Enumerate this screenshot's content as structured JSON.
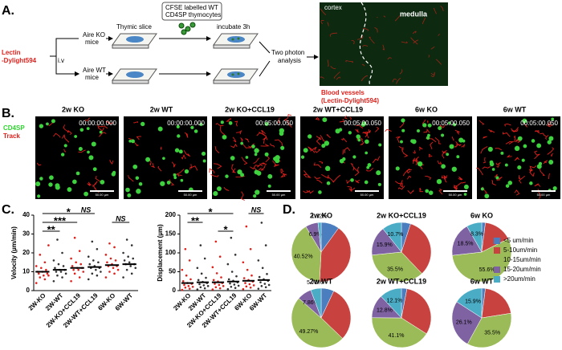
{
  "panel_a": {
    "label": "A.",
    "lectin": [
      "Lectin",
      "-Dylight594"
    ],
    "iv": "i.v",
    "aire_ko": [
      "Aire KO",
      "mice"
    ],
    "aire_wt": [
      "Aire WT",
      "mice"
    ],
    "thymic_slice": "Thymic slice",
    "cfse": [
      "CFSE labelled WT",
      "CD4SP thymocytes"
    ],
    "incubate": "incubate 3h",
    "two_photon": [
      "Two photon",
      "analysis"
    ],
    "cortex": "cortex",
    "medulla": "medulla",
    "blood_vessels": [
      "Blood vessels",
      "(Lectin-Dylight594)"
    ]
  },
  "panel_b": {
    "label": "B.",
    "legend": [
      "CD4SP",
      "Track"
    ],
    "images": [
      {
        "title": "2w KO",
        "time": "00:00:00.000",
        "scale": "50.00 µm"
      },
      {
        "title": "2w  WT",
        "time": "00:00:00.000",
        "scale": "50.00 µm"
      },
      {
        "title": "2w KO+CCL19",
        "time": "00:05:00.050",
        "scale": "50.00 µm"
      },
      {
        "title": "2w WT+CCL19",
        "time": "00:05:00.050",
        "scale": "50.00 µm"
      },
      {
        "title": "6w  KO",
        "time": "00:05:00.050",
        "scale": "50.00 µm"
      },
      {
        "title": "6w  WT",
        "time": "00:05:00.050",
        "scale": "50.00 µm"
      }
    ]
  },
  "panel_c_label": "C.",
  "panel_d_label": "D.",
  "pie_legend": {
    "labels": [
      "<5 um/min",
      "5-10um/min",
      "10-15um/min",
      "15-20um/min",
      ">20um/min"
    ],
    "colors": [
      "#4a7ebf",
      "#c8433f",
      "#9bbb59",
      "#7e62a1",
      "#4bacc6"
    ]
  },
  "chart_data": [
    {
      "type": "strip",
      "ylabel": "Velocity (µm/min)",
      "categories": [
        "2W-KO",
        "2W-WT",
        "2W-KO+CCL19",
        "2W-WT+CCL19",
        "6W-KO",
        "6W-WT"
      ],
      "colors": [
        "#e0201b",
        "#333333",
        "#e0201b",
        "#333333",
        "#e0201b",
        "#333333"
      ],
      "points": [
        [
          4,
          6,
          7,
          8,
          8,
          9,
          9,
          10,
          10,
          11,
          12,
          13,
          15,
          19,
          24
        ],
        [
          5,
          7,
          8,
          9,
          10,
          10,
          11,
          11,
          12,
          13,
          14,
          16,
          20,
          27
        ],
        [
          5,
          7,
          9,
          10,
          11,
          11,
          12,
          12,
          13,
          14,
          15,
          17,
          21,
          28
        ],
        [
          6,
          8,
          9,
          10,
          11,
          12,
          12,
          13,
          14,
          15,
          16,
          18,
          22,
          26
        ],
        [
          7,
          9,
          10,
          11,
          12,
          13,
          13,
          14,
          15,
          16,
          17,
          19,
          23,
          25
        ],
        [
          7,
          9,
          11,
          12,
          13,
          14,
          14,
          15,
          16,
          17,
          18,
          20,
          24,
          27
        ]
      ],
      "means": [
        10,
        11,
        12,
        12.5,
        13.5,
        14
      ],
      "ylim": [
        0,
        40
      ],
      "yticks": [
        0,
        10,
        20,
        30,
        40
      ],
      "annotations": [
        {
          "text": "*",
          "from": 0,
          "to": 3
        },
        {
          "text": "***",
          "from": 0,
          "to": 2
        },
        {
          "text": "**",
          "from": 0,
          "to": 1
        },
        {
          "text": "NS",
          "from": 2,
          "to": 3
        },
        {
          "text": "NS",
          "from": 4,
          "to": 5
        }
      ]
    },
    {
      "type": "strip",
      "ylabel": "Displacement (µm)",
      "categories": [
        "2W-KO",
        "2W-WT",
        "2W-KO+CCL19",
        "2W-WT+CCL19",
        "6W-KO",
        "6W-WT"
      ],
      "colors": [
        "#e0201b",
        "#333333",
        "#e0201b",
        "#333333",
        "#e0201b",
        "#333333"
      ],
      "points": [
        [
          2,
          5,
          8,
          10,
          12,
          15,
          18,
          20,
          25,
          30,
          40,
          55,
          80,
          110
        ],
        [
          3,
          6,
          9,
          12,
          14,
          17,
          20,
          23,
          28,
          34,
          45,
          60,
          85,
          120
        ],
        [
          3,
          6,
          9,
          12,
          15,
          18,
          20,
          24,
          28,
          35,
          46,
          62,
          90,
          130
        ],
        [
          4,
          7,
          10,
          13,
          16,
          19,
          22,
          26,
          30,
          38,
          50,
          70,
          95,
          140
        ],
        [
          4,
          8,
          11,
          14,
          17,
          20,
          24,
          28,
          33,
          40,
          55,
          75,
          110,
          170
        ],
        [
          5,
          9,
          12,
          15,
          18,
          22,
          26,
          30,
          36,
          44,
          60,
          80,
          120,
          180
        ]
      ],
      "means": [
        20,
        22,
        22,
        24,
        26,
        28
      ],
      "ylim": [
        0,
        200
      ],
      "yticks": [
        0,
        50,
        100,
        150,
        200
      ],
      "annotations": [
        {
          "text": "*",
          "from": 0,
          "to": 3
        },
        {
          "text": "**",
          "from": 0,
          "to": 1
        },
        {
          "text": "*",
          "from": 2,
          "to": 3
        },
        {
          "text": "NS",
          "from": 4,
          "to": 5
        }
      ]
    },
    {
      "type": "pie",
      "title": "2w KO",
      "values": [
        10,
        40.86,
        40.52,
        6.9,
        1.72
      ],
      "value_labels": [
        null,
        null,
        "40.52%",
        "6.9%",
        "1.72%"
      ]
    },
    {
      "type": "pie",
      "title": "2w KO+CCL19",
      "values": [
        5,
        32.9,
        35.5,
        15.9,
        10.7
      ],
      "value_labels": [
        null,
        null,
        "35.5%",
        "15.9%",
        "10.7%"
      ]
    },
    {
      "type": "pie",
      "title": "6w  KO",
      "values": [
        2,
        15.6,
        55.6,
        18.5,
        8.3
      ],
      "value_labels": [
        null,
        null,
        "55.6%",
        "18.5%",
        "8.3%"
      ]
    },
    {
      "type": "pie",
      "title": "2w  WT",
      "values": [
        7,
        30.16,
        49.27,
        7.86,
        5.71
      ],
      "value_labels": [
        null,
        null,
        "49.27%",
        "7.86%",
        "5.71%"
      ]
    },
    {
      "type": "pie",
      "title": "2w WT+CCL19",
      "values": [
        3,
        31,
        41.1,
        12.8,
        12.1
      ],
      "value_labels": [
        null,
        null,
        "41.1%",
        "12.8%",
        "12.1%"
      ]
    },
    {
      "type": "pie",
      "title": "6w  WT",
      "values": [
        2,
        20.5,
        35.5,
        26.1,
        15.9
      ],
      "value_labels": [
        null,
        null,
        "35.5%",
        "26.1%",
        "15.9%"
      ]
    }
  ]
}
